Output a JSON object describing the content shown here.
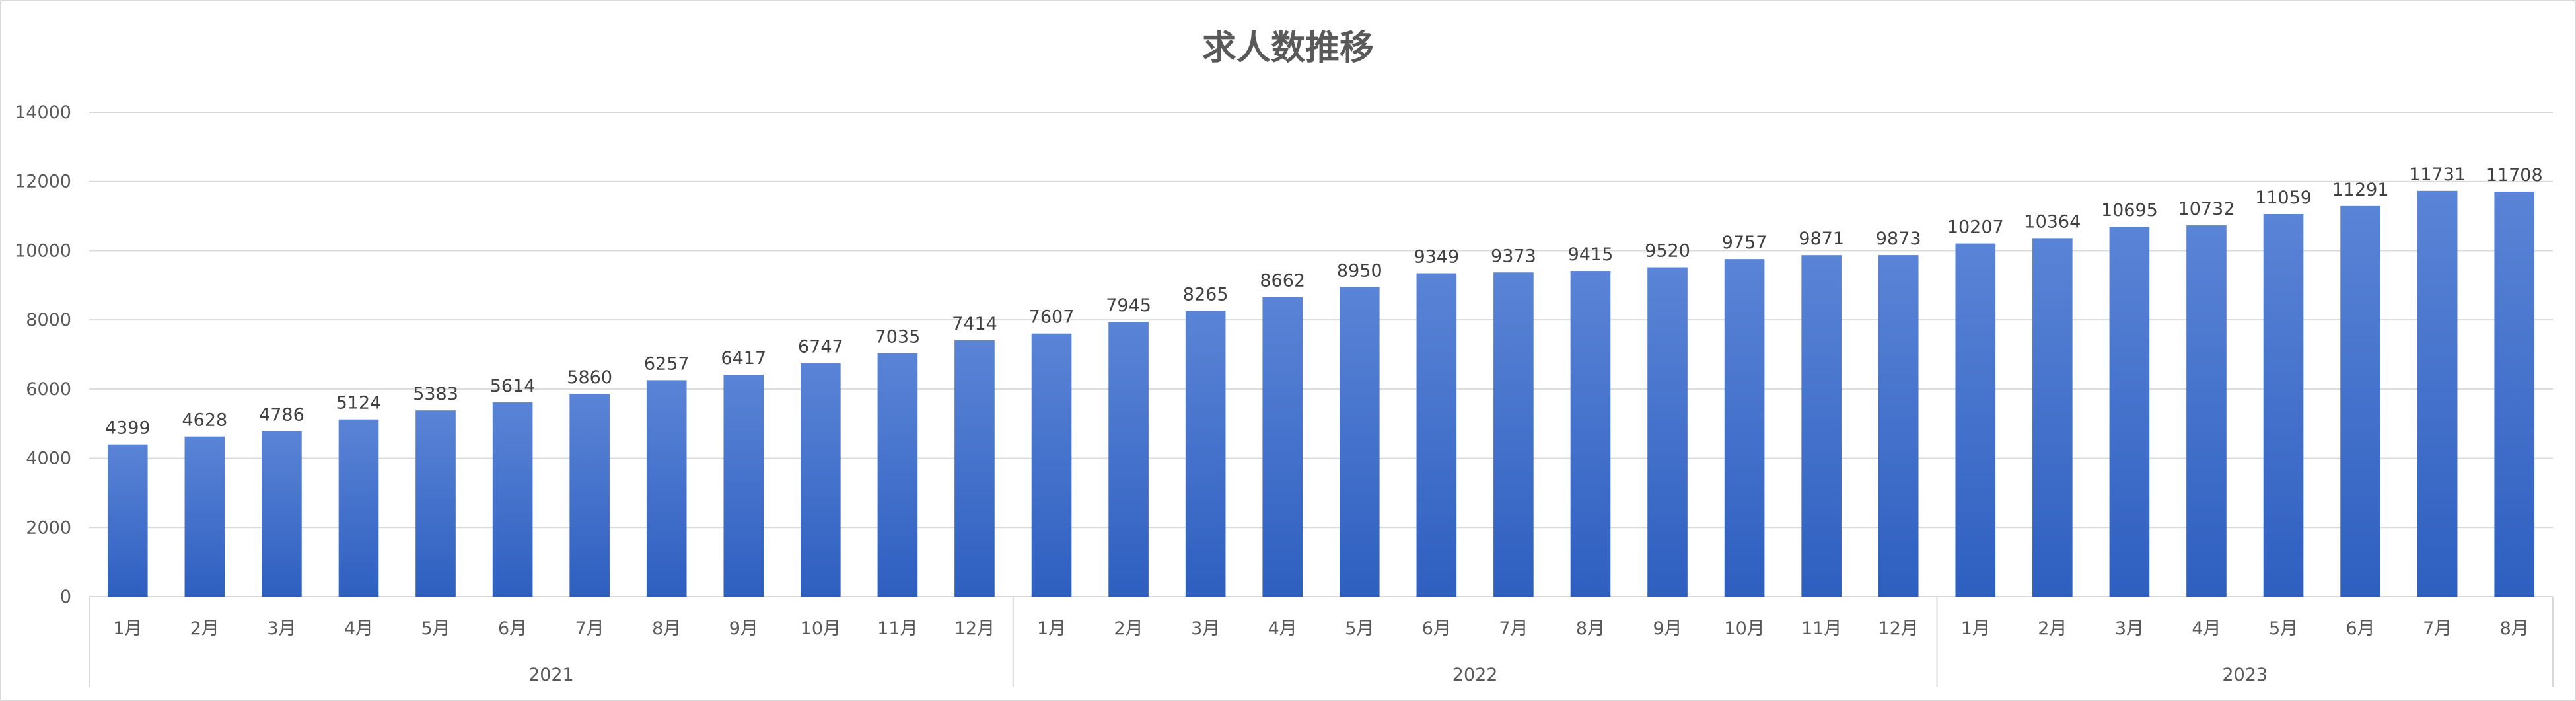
{
  "chart_data": {
    "type": "bar",
    "title": "求人数推移",
    "xlabel": "",
    "ylabel": "",
    "ylim": [
      0,
      14000
    ],
    "yticks": [
      0,
      2000,
      4000,
      6000,
      8000,
      10000,
      12000,
      14000
    ],
    "grid": true,
    "legend": "none",
    "bar_color_top": "#5a84d6",
    "bar_color_bottom": "#2e5fc0",
    "groups": [
      {
        "label": "2021",
        "categories": [
          "1月",
          "2月",
          "3月",
          "4月",
          "5月",
          "6月",
          "7月",
          "8月",
          "9月",
          "10月",
          "11月",
          "12月"
        ],
        "values": [
          4399,
          4628,
          4786,
          5124,
          5383,
          5614,
          5860,
          6257,
          6417,
          6747,
          7035,
          7414
        ]
      },
      {
        "label": "2022",
        "categories": [
          "1月",
          "2月",
          "3月",
          "4月",
          "5月",
          "6月",
          "7月",
          "8月",
          "9月",
          "10月",
          "11月",
          "12月"
        ],
        "values": [
          7607,
          7945,
          8265,
          8662,
          8950,
          9349,
          9373,
          9415,
          9520,
          9757,
          9871,
          9873
        ]
      },
      {
        "label": "2023",
        "categories": [
          "1月",
          "2月",
          "3月",
          "4月",
          "5月",
          "6月",
          "7月",
          "8月"
        ],
        "values": [
          10207,
          10364,
          10695,
          10732,
          11059,
          11291,
          11731,
          11708
        ]
      }
    ]
  }
}
